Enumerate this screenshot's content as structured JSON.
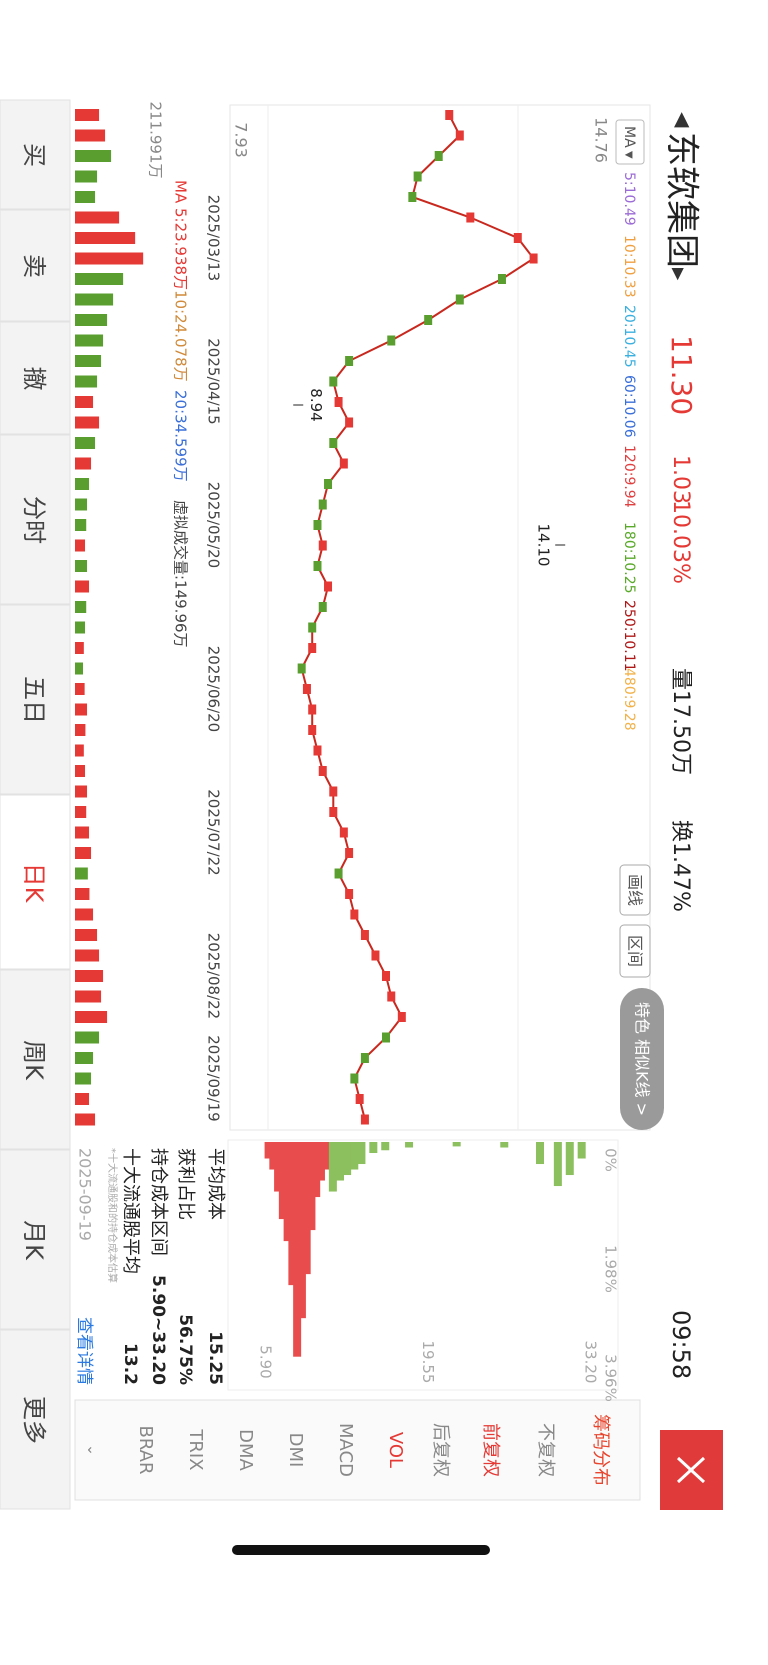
{
  "header": {
    "title": "东软集团",
    "price": "11.30",
    "change": "1.03",
    "change_pct": "10.03%",
    "volume": "量17.50万",
    "turnover": "换1.47%",
    "time": "09:58"
  },
  "ma_legend": {
    "label": "MA",
    "items": [
      {
        "text": "5:10.49",
        "color": "#9b6bd6"
      },
      {
        "text": "10:10.33",
        "color": "#f0a040"
      },
      {
        "text": "20:10.45",
        "color": "#3ab0e0"
      },
      {
        "text": "60:10.06",
        "color": "#3a6fd8"
      },
      {
        "text": "120:9.94",
        "color": "#e04040"
      },
      {
        "text": "180:10.25",
        "color": "#5aaa2a"
      },
      {
        "text": "250:10.11",
        "color": "#b01818"
      },
      {
        "text": "480:9.28",
        "color": "#f2b24a"
      }
    ]
  },
  "toolbar": [
    "画线",
    "区间",
    "特色 相似K线 >"
  ],
  "chart_data": [
    {
      "type": "line",
      "color": "#c8281e",
      "ylim": [
        7.93,
        14.76
      ],
      "yticks": [
        14.76,
        7.93
      ],
      "categories": [
        null,
        null,
        null,
        null,
        null,
        null,
        "2025/03/13",
        null,
        null,
        null,
        null,
        null,
        null,
        "2025/04/15",
        null,
        null,
        null,
        null,
        null,
        null,
        "2025/05/20",
        null,
        null,
        null,
        null,
        null,
        null,
        null,
        "2025/06/20",
        null,
        null,
        null,
        null,
        null,
        null,
        "2025/07/22",
        null,
        null,
        null,
        null,
        null,
        null,
        "2025/08/22",
        null,
        null,
        null,
        null,
        "2025/09/19",
        null,
        null
      ],
      "values": [
        11.9,
        12.1,
        11.7,
        11.3,
        11.2,
        12.3,
        13.2,
        13.5,
        12.9,
        12.1,
        11.5,
        10.8,
        10.0,
        9.7,
        9.8,
        10.0,
        9.7,
        9.9,
        9.6,
        9.5,
        9.4,
        9.5,
        9.4,
        9.6,
        9.5,
        9.3,
        9.3,
        9.1,
        9.2,
        9.3,
        9.3,
        9.4,
        9.5,
        9.7,
        9.7,
        9.9,
        10.0,
        9.8,
        10.0,
        10.1,
        10.3,
        10.5,
        10.7,
        10.8,
        11.0,
        10.7,
        10.3,
        10.1,
        10.2,
        10.3
      ],
      "annotations": [
        {
          "label": "14.10",
          "value": 14.1
        },
        {
          "label": "8.94",
          "value": 8.94
        }
      ]
    },
    {
      "type": "bar",
      "ylim": [
        0,
        211.991
      ],
      "yticks": [
        {
          "value": 211.991,
          "label": "211.991万"
        }
      ],
      "up_color": "#e53935",
      "down_color": "#5a9e2f",
      "legend": [
        {
          "text": "MA 5:23.938万",
          "color": "#e53935"
        },
        {
          "text": "10:24.078万",
          "color": "#d08a3a"
        },
        {
          "text": "20:34.599万",
          "color": "#3a6fd8"
        }
      ],
      "note": "虚拟成交量:149.96万",
      "values": [
        60,
        75,
        90,
        55,
        50,
        110,
        150,
        170,
        120,
        95,
        80,
        70,
        65,
        55,
        45,
        60,
        50,
        40,
        35,
        30,
        28,
        25,
        30,
        35,
        28,
        25,
        22,
        20,
        24,
        30,
        26,
        22,
        25,
        30,
        28,
        35,
        40,
        32,
        36,
        45,
        55,
        60,
        70,
        65,
        80,
        60,
        45,
        40,
        35,
        50
      ]
    },
    {
      "type": "hbar",
      "xlim": [
        0,
        3.96
      ],
      "xticks": [
        {
          "value": 0,
          "label": "0%"
        },
        {
          "value": 1.98,
          "label": "1.98%"
        },
        {
          "value": 3.96,
          "label": "3.96%"
        }
      ],
      "ylim": [
        5.9,
        33.2
      ],
      "yticks": [
        {
          "value": 33.2,
          "label": "33.20"
        },
        19.55,
        {
          "value": 5.9,
          "label": "5.90"
        }
      ],
      "series": [
        {
          "color": "#e84c4c",
          "prices": [
            6.2,
            6.6,
            7.0,
            7.4,
            7.8,
            8.2,
            8.6,
            9.0,
            9.4,
            9.8,
            10.2,
            10.6,
            11.0
          ],
          "values": [
            0.3,
            0.5,
            0.9,
            1.4,
            1.8,
            2.6,
            3.9,
            3.2,
            2.4,
            1.6,
            1.0,
            0.7,
            0.5
          ]
        },
        {
          "color": "#8cbf5e",
          "prices": [
            11.6,
            12.2,
            12.8,
            13.4,
            14.0,
            15,
            16,
            18,
            22,
            26,
            29,
            30.5,
            31.5,
            32.5
          ],
          "values": [
            0.9,
            0.7,
            0.6,
            0.5,
            0.4,
            0.2,
            0.15,
            0.1,
            0.08,
            0.1,
            0.4,
            0.8,
            0.6,
            0.3
          ]
        }
      ]
    }
  ],
  "chip_info": {
    "rows": [
      [
        "平均成本",
        "15.25"
      ],
      [
        "获利占比",
        "56.75%"
      ],
      [
        "持仓成本区间",
        "5.90~33.20"
      ],
      [
        "十大流通股平均",
        "13.2"
      ]
    ],
    "note": "*十大流通股和的持仓成本估算",
    "date": "2025-09-19",
    "link": "查看详情"
  },
  "indicators": [
    "筹码分布",
    "不复权",
    "前复权",
    "后复权",
    "VOL",
    "MACD",
    "DMI",
    "DMA",
    "TRIX",
    "BRAR"
  ],
  "tabs": [
    "买",
    "卖",
    "撤",
    "分时",
    "五日",
    "日K",
    "周K",
    "月K",
    "更多"
  ]
}
